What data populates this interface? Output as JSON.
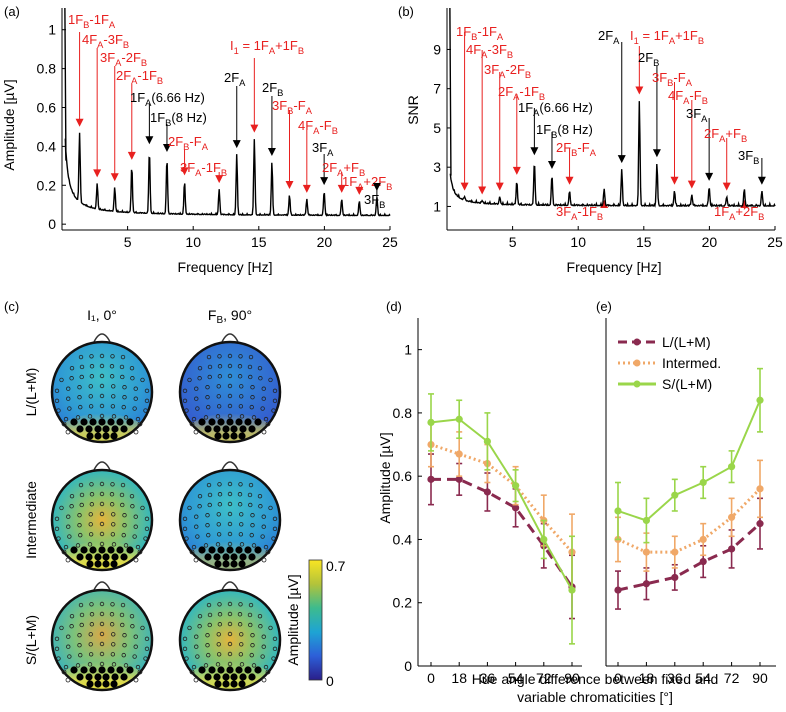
{
  "colors": {
    "annotation_red": "#e8201f",
    "trace": "#000000",
    "series_L": "#8a2a4f",
    "series_I": "#f0a868",
    "series_S": "#9ad64a",
    "cbar_top": "#f9e523",
    "cbar_bottom": "#2a1e8a"
  },
  "panel_a": {
    "label": "(a)",
    "xlabel": "Frequency [Hz]",
    "ylabel": "Amplitude [µV]",
    "yticks": [
      "0",
      "0.2",
      "0.4",
      "0.6",
      "0.8",
      "1"
    ],
    "xticks": [
      "5",
      "10",
      "15",
      "20",
      "25"
    ]
  },
  "panel_b": {
    "label": "(b)",
    "xlabel": "Frequency [Hz]",
    "ylabel": "SNR",
    "yticks": [
      "1",
      "3",
      "5",
      "7",
      "9"
    ],
    "xticks": [
      "5",
      "10",
      "15",
      "20",
      "25"
    ]
  },
  "panel_c": {
    "label": "(c)",
    "col_titles": [
      "I₁, 0°",
      "F_B, 90°"
    ],
    "row_labels": [
      "L/(L+M)",
      "Intermediate",
      "S/(L+M)"
    ],
    "colorbar_label": "Amplitude [µV]",
    "colorbar_max": "0.7",
    "colorbar_min": "0"
  },
  "panel_d": {
    "label": "(d)"
  },
  "panel_e": {
    "label": "(e)"
  },
  "line_panels": {
    "ylabel": "Amplitude [µV]",
    "xlabel_line1": "Hue angle difference between fixed and",
    "xlabel_line2": "variable chromaticities [°]",
    "yticks": [
      "0",
      "0.2",
      "0.4",
      "0.6",
      "0.8",
      "1"
    ],
    "xticks": [
      "0",
      "18",
      "36",
      "54",
      "72",
      "90"
    ],
    "legend": [
      "L/(L+M)",
      "Intermed.",
      "S/(L+M)"
    ]
  },
  "chart_data": [
    {
      "type": "line",
      "title": "(a)",
      "xlabel": "Frequency [Hz]",
      "ylabel": "Amplitude [µV]",
      "xlim": [
        0,
        25
      ],
      "ylim": [
        0,
        1.05
      ],
      "peaks": [
        {
          "f": 1.34,
          "amp": 0.47,
          "label": "1F_B-1F_A",
          "color": "red"
        },
        {
          "f": 2.68,
          "amp": 0.21,
          "label": "4F_A-3F_B",
          "color": "red"
        },
        {
          "f": 4.02,
          "amp": 0.19,
          "label": "3F_A-2F_B",
          "color": "red"
        },
        {
          "f": 5.32,
          "amp": 0.3,
          "label": "2F_A-1F_B",
          "color": "red"
        },
        {
          "f": 6.66,
          "amp": 0.38,
          "label": "1F_A(6.66 Hz)",
          "color": "black"
        },
        {
          "f": 8.0,
          "amp": 0.34,
          "label": "1F_B(8 Hz)",
          "color": "black"
        },
        {
          "f": 9.34,
          "amp": 0.22,
          "label": "2F_B-F_A",
          "color": "red"
        },
        {
          "f": 11.98,
          "amp": 0.18,
          "label": "3F_A-1F_B",
          "color": "red"
        },
        {
          "f": 13.32,
          "amp": 0.36,
          "label": "2F_A",
          "color": "black"
        },
        {
          "f": 14.66,
          "amp": 0.44,
          "label": "I_1 = 1F_A+1F_B",
          "color": "red"
        },
        {
          "f": 16.0,
          "amp": 0.32,
          "label": "2F_B",
          "color": "black"
        },
        {
          "f": 17.34,
          "amp": 0.15,
          "label": "3F_B-F_A",
          "color": "red"
        },
        {
          "f": 18.66,
          "amp": 0.13,
          "label": "4F_A-F_B",
          "color": "red"
        },
        {
          "f": 19.98,
          "amp": 0.17,
          "label": "3F_A",
          "color": "black"
        },
        {
          "f": 21.32,
          "amp": 0.13,
          "label": "2F_A+F_B",
          "color": "red"
        },
        {
          "f": 22.66,
          "amp": 0.12,
          "label": "1F_A+2F_B",
          "color": "red"
        },
        {
          "f": 24.0,
          "amp": 0.14,
          "label": "3F_B",
          "color": "black"
        }
      ]
    },
    {
      "type": "line",
      "title": "(b)",
      "xlabel": "Frequency [Hz]",
      "ylabel": "SNR",
      "xlim": [
        0,
        25
      ],
      "ylim": [
        0,
        10.5
      ],
      "peaks": [
        {
          "f": 1.34,
          "snr": 1.5,
          "label": "1F_B-1F_A",
          "color": "red"
        },
        {
          "f": 2.68,
          "snr": 1.3,
          "label": "4F_A-3F_B",
          "color": "red"
        },
        {
          "f": 4.02,
          "snr": 1.5,
          "label": "3F_A-2F_B",
          "color": "red"
        },
        {
          "f": 5.32,
          "snr": 2.3,
          "label": "2F_A-1F_B",
          "color": "red"
        },
        {
          "f": 6.66,
          "snr": 3.3,
          "label": "1F_A(6.66 Hz)",
          "color": "black"
        },
        {
          "f": 8.0,
          "snr": 2.6,
          "label": "1F_B(8 Hz)",
          "color": "black"
        },
        {
          "f": 9.34,
          "snr": 1.8,
          "label": "2F_B-F_A",
          "color": "red"
        },
        {
          "f": 11.98,
          "snr": 1.9,
          "label": "3F_A-1F_B",
          "color": "red"
        },
        {
          "f": 13.32,
          "snr": 2.9,
          "label": "2F_A",
          "color": "black"
        },
        {
          "f": 14.66,
          "snr": 6.4,
          "label": "I_1 = 1F_A+1F_B",
          "color": "red"
        },
        {
          "f": 16.0,
          "snr": 3.2,
          "label": "2F_B",
          "color": "black"
        },
        {
          "f": 17.34,
          "snr": 1.8,
          "label": "3F_B-F_A",
          "color": "red"
        },
        {
          "f": 18.66,
          "snr": 1.6,
          "label": "4F_A-F_B",
          "color": "red"
        },
        {
          "f": 19.98,
          "snr": 2.0,
          "label": "3F_A",
          "color": "black"
        },
        {
          "f": 21.32,
          "snr": 1.5,
          "label": "2F_A+F_B",
          "color": "red"
        },
        {
          "f": 22.66,
          "snr": 1.9,
          "label": "1F_A+2F_B",
          "color": "red"
        },
        {
          "f": 24.0,
          "snr": 1.8,
          "label": "3F_B",
          "color": "black"
        }
      ]
    },
    {
      "type": "line",
      "title": "(d)",
      "xlabel": "Hue angle difference between fixed and variable chromaticities [°]",
      "ylabel": "Amplitude [µV]",
      "x": [
        0,
        18,
        36,
        54,
        72,
        90
      ],
      "ylim": [
        0,
        1.1
      ],
      "series": [
        {
          "name": "L/(L+M)",
          "values": [
            0.59,
            0.59,
            0.55,
            0.5,
            0.38,
            0.25
          ],
          "err": [
            0.08,
            0.05,
            0.06,
            0.06,
            0.07,
            0.1
          ]
        },
        {
          "name": "Intermed.",
          "values": [
            0.7,
            0.67,
            0.64,
            0.57,
            0.46,
            0.36
          ],
          "err": [
            0.07,
            0.07,
            0.06,
            0.06,
            0.08,
            0.12
          ]
        },
        {
          "name": "S/(L+M)",
          "values": [
            0.77,
            0.78,
            0.71,
            0.57,
            0.4,
            0.24
          ],
          "err": [
            0.09,
            0.06,
            0.09,
            0.05,
            0.06,
            0.17
          ]
        }
      ]
    },
    {
      "type": "line",
      "title": "(e)",
      "xlabel": "Hue angle difference between fixed and variable chromaticities [°]",
      "ylabel": "Amplitude [µV]",
      "x": [
        0,
        18,
        36,
        54,
        72,
        90
      ],
      "ylim": [
        0,
        1.1
      ],
      "series": [
        {
          "name": "L/(L+M)",
          "values": [
            0.24,
            0.26,
            0.28,
            0.33,
            0.37,
            0.45
          ],
          "err": [
            0.06,
            0.05,
            0.04,
            0.05,
            0.06,
            0.08
          ]
        },
        {
          "name": "Intermed.",
          "values": [
            0.4,
            0.36,
            0.36,
            0.4,
            0.47,
            0.56
          ],
          "err": [
            0.07,
            0.06,
            0.05,
            0.05,
            0.06,
            0.09
          ]
        },
        {
          "name": "S/(L+M)",
          "values": [
            0.49,
            0.46,
            0.54,
            0.58,
            0.63,
            0.84
          ],
          "err": [
            0.09,
            0.07,
            0.05,
            0.05,
            0.05,
            0.1
          ]
        }
      ]
    }
  ]
}
